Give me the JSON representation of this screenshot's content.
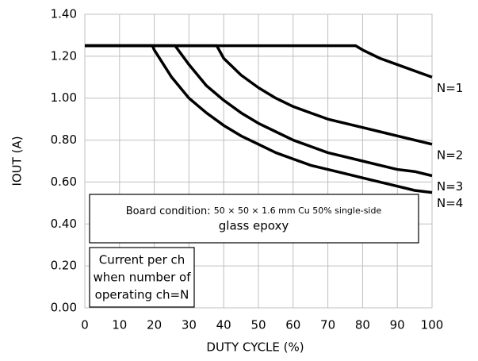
{
  "chart_data": {
    "type": "line",
    "x_label": "DUTY CYCLE (%)",
    "y_label": "IOUT (A)",
    "xlim": [
      0,
      100
    ],
    "xticks": [
      0,
      10,
      20,
      30,
      40,
      50,
      60,
      70,
      80,
      90,
      100
    ],
    "ylim": [
      0,
      1.4
    ],
    "yticks": [
      {
        "value": 0,
        "label": "0.00"
      },
      {
        "value": 0.2,
        "label": "0.20"
      },
      {
        "value": 0.4,
        "label": "0.40"
      },
      {
        "value": 0.6,
        "label": "0.60"
      },
      {
        "value": 0.8,
        "label": "0.80"
      },
      {
        "value": 1.0,
        "label": "1.00"
      },
      {
        "value": 1.2,
        "label": "1.20"
      },
      {
        "value": 1.4,
        "label": "1.40"
      }
    ],
    "grid": true,
    "series": [
      {
        "name": "N=1",
        "color": "#000000",
        "x": [
          0,
          78,
          80,
          85,
          90,
          95,
          100
        ],
        "values": [
          1.25,
          1.25,
          1.23,
          1.19,
          1.16,
          1.13,
          1.1
        ]
      },
      {
        "name": "N=2",
        "color": "#000000",
        "x": [
          0,
          38,
          40,
          45,
          50,
          55,
          60,
          65,
          70,
          75,
          80,
          85,
          90,
          95,
          100
        ],
        "values": [
          1.25,
          1.25,
          1.19,
          1.11,
          1.05,
          1.0,
          0.96,
          0.93,
          0.9,
          0.88,
          0.86,
          0.84,
          0.82,
          0.8,
          0.78
        ]
      },
      {
        "name": "N=3",
        "color": "#000000",
        "x": [
          0,
          26,
          30,
          35,
          40,
          45,
          50,
          55,
          60,
          65,
          70,
          75,
          80,
          85,
          90,
          95,
          100
        ],
        "values": [
          1.25,
          1.25,
          1.16,
          1.06,
          0.99,
          0.93,
          0.88,
          0.84,
          0.8,
          0.77,
          0.74,
          0.72,
          0.7,
          0.68,
          0.66,
          0.65,
          0.63
        ]
      },
      {
        "name": "N=4",
        "color": "#000000",
        "x": [
          0,
          19.5,
          20,
          25,
          30,
          35,
          40,
          45,
          50,
          55,
          60,
          65,
          70,
          75,
          80,
          85,
          90,
          95,
          100
        ],
        "values": [
          1.25,
          1.25,
          1.23,
          1.1,
          1.0,
          0.93,
          0.87,
          0.82,
          0.78,
          0.74,
          0.71,
          0.68,
          0.66,
          0.64,
          0.62,
          0.6,
          0.58,
          0.56,
          0.55
        ]
      }
    ],
    "annotations": [
      {
        "label": "Board condition: ",
        "detail": "50 × 50 × 1.6 mm Cu 50% single-side",
        "line2": "glass epoxy"
      },
      {
        "lines": [
          "Current per ch",
          "when number of",
          "operating ch=N"
        ]
      }
    ]
  }
}
